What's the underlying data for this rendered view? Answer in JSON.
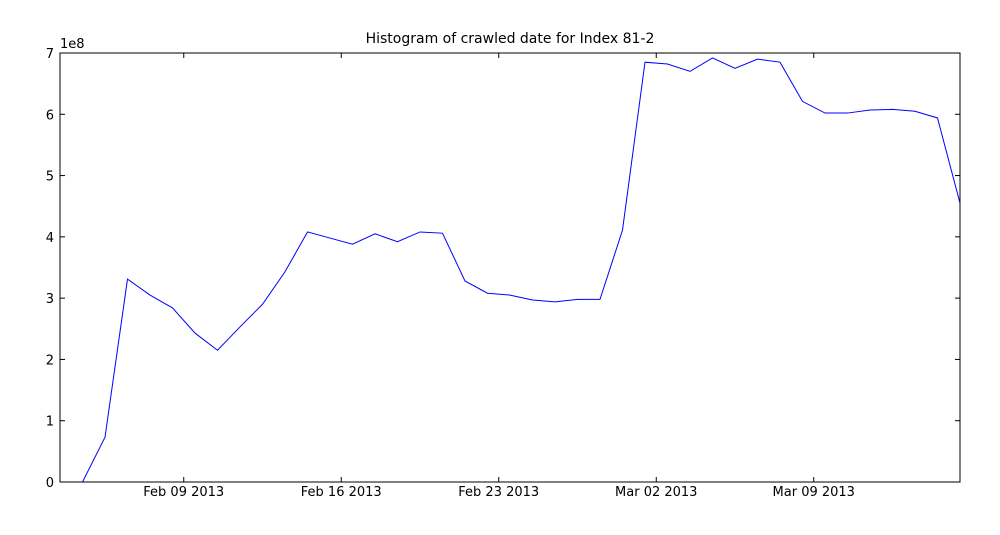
{
  "chart_data": {
    "type": "line",
    "title": "Histogram of crawled date for Index 81-2",
    "y_offset_label": "1e8",
    "x": [
      "2013-02-03T12:00",
      "2013-02-04T12:00",
      "2013-02-05T12:00",
      "2013-02-06T12:00",
      "2013-02-07T12:00",
      "2013-02-08T12:00",
      "2013-02-09T12:00",
      "2013-02-10T12:00",
      "2013-02-11T12:00",
      "2013-02-12T12:00",
      "2013-02-13T12:00",
      "2013-02-14T12:00",
      "2013-02-15T12:00",
      "2013-02-16T12:00",
      "2013-02-17T12:00",
      "2013-02-18T12:00",
      "2013-02-19T12:00",
      "2013-02-20T12:00",
      "2013-02-21T12:00",
      "2013-02-22T12:00",
      "2013-02-23T12:00",
      "2013-02-24T12:00",
      "2013-02-25T12:00",
      "2013-02-26T12:00",
      "2013-02-27T12:00",
      "2013-02-28T12:00",
      "2013-03-01T12:00",
      "2013-03-02T12:00",
      "2013-03-03T12:00",
      "2013-03-04T12:00",
      "2013-03-05T12:00",
      "2013-03-06T12:00",
      "2013-03-07T12:00",
      "2013-03-08T12:00",
      "2013-03-09T12:00",
      "2013-03-10T12:00",
      "2013-03-11T12:00",
      "2013-03-12T12:00",
      "2013-03-13T12:00",
      "2013-03-14T12:00",
      "2013-03-15T12:00"
    ],
    "series": [
      {
        "color": "#0000ff",
        "values": [
          0,
          0,
          0.73,
          3.31,
          3.05,
          2.84,
          2.43,
          2.15,
          2.53,
          2.9,
          3.43,
          4.08,
          3.98,
          3.88,
          4.05,
          3.92,
          4.08,
          4.06,
          3.28,
          3.08,
          3.05,
          2.97,
          2.94,
          2.98,
          2.98,
          4.11,
          6.85,
          6.82,
          6.7,
          6.92,
          6.75,
          6.9,
          6.85,
          6.21,
          6.02,
          6.02,
          6.07,
          6.08,
          6.05,
          5.94,
          4.55
        ]
      }
    ],
    "xlim": [
      "2013-02-03T12:00",
      "2013-03-15T12:00"
    ],
    "xticks": [
      {
        "value": "2013-02-09T00:00",
        "label": "Feb 09 2013"
      },
      {
        "value": "2013-02-16T00:00",
        "label": "Feb 16 2013"
      },
      {
        "value": "2013-02-23T00:00",
        "label": "Feb 23 2013"
      },
      {
        "value": "2013-03-02T00:00",
        "label": "Mar 02 2013"
      },
      {
        "value": "2013-03-09T00:00",
        "label": "Mar 09 2013"
      }
    ],
    "ylim": [
      0,
      7
    ],
    "yticks": [
      0,
      1,
      2,
      3,
      4,
      5,
      6,
      7
    ],
    "grid": false
  }
}
